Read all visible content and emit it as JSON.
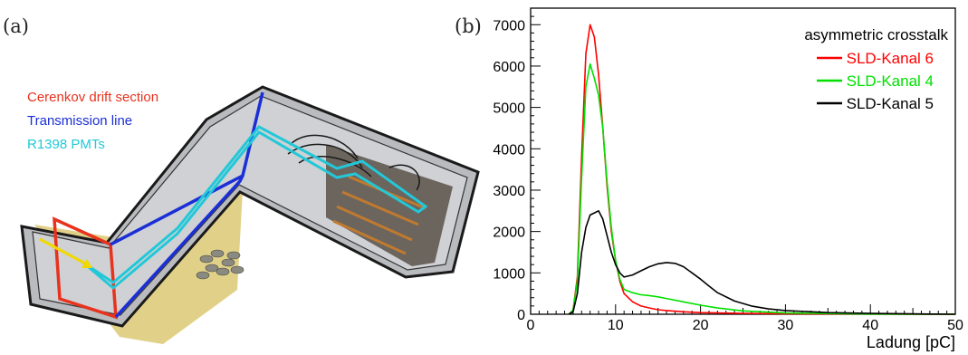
{
  "panel_a": {
    "label": "(a)",
    "legend": [
      {
        "text": "Cerenkov drift section",
        "color": "#e8321e"
      },
      {
        "text": "Transmission line",
        "color": "#1a2fd6"
      },
      {
        "text": "R1398 PMTs",
        "color": "#22c8d8"
      }
    ]
  },
  "panel_b": {
    "label": "(b)"
  },
  "chart_data": {
    "type": "line",
    "title": "",
    "legend_title": "asymmetric crosstalk",
    "legend_position": "top-right",
    "xlabel": "Ladung [pC]",
    "ylabel": "",
    "xlim": [
      0,
      50
    ],
    "ylim": [
      0,
      7400
    ],
    "xticks": [
      0,
      10,
      20,
      30,
      40,
      50
    ],
    "yticks": [
      0,
      1000,
      2000,
      3000,
      4000,
      5000,
      6000,
      7000
    ],
    "grid": false,
    "series": [
      {
        "name": "SLD-Kanal 6",
        "color": "#ff0000",
        "x": [
          4.5,
          5,
          5.5,
          6,
          6.5,
          7,
          7.5,
          8,
          8.5,
          9,
          9.5,
          10,
          10.5,
          11,
          12,
          13,
          14,
          15,
          16,
          18,
          20,
          25,
          30,
          40,
          50
        ],
        "y": [
          0,
          100,
          900,
          3800,
          6300,
          7000,
          6700,
          5800,
          4500,
          3100,
          2000,
          1300,
          800,
          500,
          300,
          200,
          150,
          110,
          90,
          60,
          40,
          20,
          10,
          5,
          0
        ]
      },
      {
        "name": "SLD-Kanal 4",
        "color": "#00e000",
        "x": [
          4.5,
          5,
          5.5,
          6,
          6.5,
          7,
          7.5,
          8,
          8.5,
          9,
          9.5,
          10,
          10.5,
          11,
          12,
          13,
          14,
          15,
          16,
          18,
          20,
          22,
          25,
          30,
          40,
          50
        ],
        "y": [
          0,
          100,
          800,
          3300,
          5500,
          6050,
          5700,
          5300,
          4500,
          3200,
          2100,
          1300,
          850,
          600,
          520,
          470,
          450,
          420,
          380,
          300,
          220,
          150,
          80,
          30,
          5,
          0
        ]
      },
      {
        "name": "SLD-Kanal 5",
        "color": "#000000",
        "x": [
          4.5,
          5,
          5.5,
          6,
          6.5,
          7,
          7.5,
          8,
          8.5,
          9,
          9.5,
          10,
          10.5,
          11,
          12,
          13,
          14,
          15,
          16,
          17,
          18,
          19,
          20,
          21,
          22,
          24,
          26,
          28,
          30,
          35,
          40,
          45,
          50
        ],
        "y": [
          0,
          60,
          500,
          1500,
          2100,
          2400,
          2450,
          2500,
          2300,
          1900,
          1500,
          1200,
          1000,
          900,
          950,
          1050,
          1150,
          1220,
          1250,
          1230,
          1150,
          1000,
          850,
          680,
          520,
          320,
          200,
          130,
          90,
          40,
          20,
          8,
          0
        ]
      }
    ]
  }
}
